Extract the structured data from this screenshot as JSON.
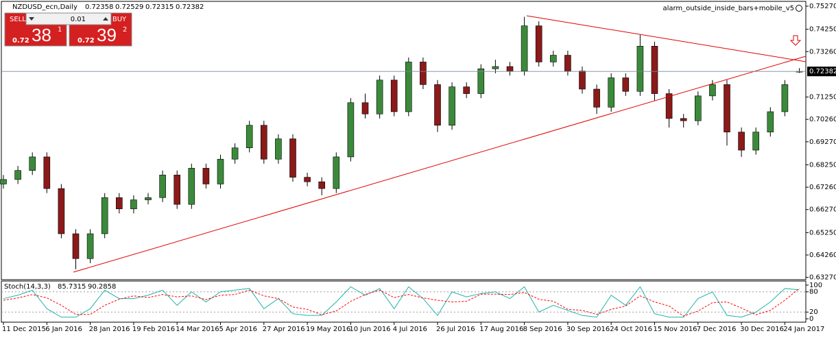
{
  "chart_data": [
    {
      "type": "candlestick",
      "title": "NZDUSD_ecn,Daily",
      "expert_name": "alarm_outside_inside_bars+mobile_v5",
      "categories": [
        "11 Dec 2015",
        null,
        null,
        "6 Jan 2016",
        null,
        null,
        "28 Jan 2016",
        null,
        null,
        "19 Feb 2016",
        null,
        null,
        "14 Mar 2016",
        null,
        null,
        "5 Apr 2016",
        null,
        null,
        "27 Apr 2016",
        null,
        null,
        "19 May 2016",
        null,
        null,
        "10 Jun 2016",
        null,
        null,
        "4 Jul 2016",
        null,
        null,
        "26 Jul 2016",
        null,
        null,
        "17 Aug 2016",
        null,
        null,
        "8 Sep 2016",
        null,
        null,
        "30 Sep 2016",
        null,
        null,
        "24 Oct 2016",
        null,
        null,
        "15 Nov 2016",
        null,
        null,
        "7 Dec 2016",
        null,
        null,
        "30 Dec 2016",
        null,
        null,
        "24 Jan 2017",
        null
      ],
      "open": [
        0.674,
        0.676,
        0.68,
        0.686,
        0.672,
        0.652,
        0.641,
        0.652,
        0.668,
        0.663,
        0.667,
        0.668,
        0.678,
        0.665,
        0.681,
        0.674,
        0.685,
        0.69,
        0.7,
        0.685,
        0.694,
        0.677,
        0.675,
        0.672,
        0.686,
        0.71,
        0.705,
        0.72,
        0.706,
        0.728,
        0.718,
        0.7,
        0.717,
        0.714,
        0.725,
        0.726,
        0.724,
        0.744,
        0.728,
        0.731,
        0.724,
        0.716,
        0.708,
        0.721,
        0.715,
        0.735,
        0.714,
        0.703,
        0.702,
        0.713,
        0.718,
        0.697,
        0.689,
        0.697,
        0.706,
        0.72358
      ],
      "high": [
        0.678,
        0.682,
        0.688,
        0.688,
        0.674,
        0.654,
        0.654,
        0.67,
        0.67,
        0.669,
        0.67,
        0.68,
        0.68,
        0.683,
        0.683,
        0.687,
        0.692,
        0.702,
        0.702,
        0.696,
        0.696,
        0.679,
        0.677,
        0.688,
        0.712,
        0.714,
        0.722,
        0.722,
        0.73,
        0.73,
        0.72,
        0.719,
        0.719,
        0.727,
        0.729,
        0.728,
        0.748,
        0.746,
        0.733,
        0.733,
        0.726,
        0.718,
        0.723,
        0.723,
        0.74,
        0.737,
        0.716,
        0.705,
        0.715,
        0.72,
        0.72,
        0.699,
        0.699,
        0.708,
        0.72,
        0.72529
      ],
      "low": [
        0.672,
        0.674,
        0.678,
        0.67,
        0.65,
        0.6363,
        0.639,
        0.65,
        0.661,
        0.661,
        0.665,
        0.666,
        0.663,
        0.663,
        0.672,
        0.672,
        0.683,
        0.688,
        0.683,
        0.683,
        0.675,
        0.673,
        0.669,
        0.67,
        0.684,
        0.703,
        0.703,
        0.704,
        0.704,
        0.716,
        0.697,
        0.698,
        0.712,
        0.712,
        0.723,
        0.722,
        0.722,
        0.726,
        0.726,
        0.722,
        0.714,
        0.705,
        0.706,
        0.713,
        0.713,
        0.711,
        0.699,
        0.699,
        0.7,
        0.711,
        0.691,
        0.686,
        0.687,
        0.695,
        0.704,
        0.72315
      ],
      "close": [
        0.676,
        0.68,
        0.686,
        0.672,
        0.652,
        0.641,
        0.652,
        0.668,
        0.663,
        0.667,
        0.668,
        0.678,
        0.665,
        0.681,
        0.674,
        0.685,
        0.69,
        0.7,
        0.685,
        0.694,
        0.677,
        0.675,
        0.672,
        0.686,
        0.71,
        0.705,
        0.72,
        0.706,
        0.728,
        0.718,
        0.7,
        0.717,
        0.714,
        0.725,
        0.726,
        0.724,
        0.744,
        0.728,
        0.731,
        0.724,
        0.716,
        0.708,
        0.721,
        0.715,
        0.735,
        0.714,
        0.703,
        0.702,
        0.713,
        0.718,
        0.697,
        0.689,
        0.697,
        0.706,
        0.718,
        0.72382
      ],
      "up_color": "#3b8a3b",
      "down_color": "#8b1a1a",
      "ylim": [
        0.63168,
        0.75482
      ],
      "yticks": [
        {
          "value": 0.7527,
          "label": "0.75270"
        },
        {
          "value": 0.7425,
          "label": "0.74250"
        },
        {
          "value": 0.7326,
          "label": "0.73260"
        },
        {
          "value": 0.7125,
          "label": "0.71250"
        },
        {
          "value": 0.7026,
          "label": "0.70260"
        },
        {
          "value": 0.6927,
          "label": "0.69270"
        },
        {
          "value": 0.6825,
          "label": "0.68250"
        },
        {
          "value": 0.6726,
          "label": "0.67260"
        },
        {
          "value": 0.6627,
          "label": "0.66270"
        },
        {
          "value": 0.6525,
          "label": "0.65250"
        },
        {
          "value": 0.6426,
          "label": "0.64260"
        },
        {
          "value": 0.6327,
          "label": "0.63270"
        }
      ],
      "price_line": true
    },
    {
      "type": "line",
      "title": "Stoch(14,3,3)",
      "series": [
        {
          "color": "#20b2aa",
          "dashed": false,
          "values": [
            60,
            70,
            85,
            30,
            5,
            5,
            30,
            85,
            60,
            60,
            70,
            85,
            40,
            80,
            50,
            80,
            85,
            90,
            30,
            60,
            15,
            10,
            10,
            50,
            95,
            70,
            90,
            30,
            95,
            60,
            10,
            80,
            65,
            75,
            80,
            60,
            95,
            20,
            40,
            25,
            10,
            5,
            70,
            40,
            95,
            15,
            5,
            5,
            60,
            80,
            10,
            5,
            20,
            50,
            90,
            85.7315
          ]
        },
        {
          "color": "#ff0000",
          "dashed": true,
          "values": [
            55,
            62,
            72,
            62,
            40,
            13,
            13,
            40,
            58,
            68,
            63,
            72,
            65,
            68,
            57,
            70,
            72,
            85,
            68,
            60,
            35,
            28,
            12,
            23,
            52,
            72,
            85,
            63,
            72,
            62,
            55,
            50,
            52,
            73,
            73,
            72,
            78,
            58,
            52,
            28,
            25,
            13,
            28,
            38,
            68,
            50,
            38,
            8,
            23,
            48,
            50,
            32,
            12,
            25,
            55,
            90.2858
          ]
        }
      ],
      "ylim": [
        -10,
        112
      ],
      "yticks": [
        0,
        20,
        80,
        100
      ],
      "levels": [
        20,
        80
      ]
    }
  ],
  "trade_panel": {
    "sell": "SELL",
    "buy": "BUY",
    "lot": "0.01",
    "bid_prefix": "0.72",
    "bid_big": "38",
    "bid_small": "1",
    "ask_prefix": "0.72",
    "ask_big": "39",
    "ask_small": "2"
  }
}
